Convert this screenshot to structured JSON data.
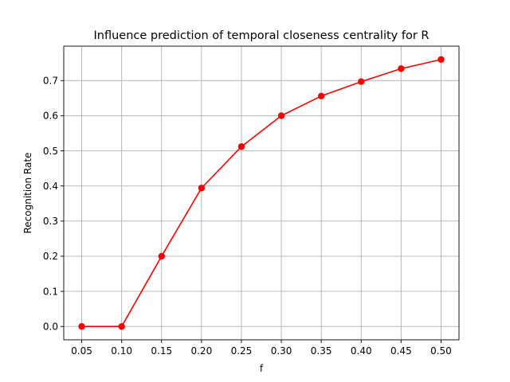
{
  "chart_data": {
    "type": "line",
    "title": "Influence prediction of temporal closeness centrality for R",
    "xlabel": "f",
    "ylabel": "Recognition Rate",
    "x": [
      0.05,
      0.1,
      0.15,
      0.2,
      0.25,
      0.3,
      0.35,
      0.4,
      0.45,
      0.5
    ],
    "series": [
      {
        "values": [
          0.0,
          0.0,
          0.2,
          0.394,
          0.512,
          0.6,
          0.656,
          0.697,
          0.734,
          0.76
        ],
        "color": "#ff0000",
        "marker": "circle"
      }
    ],
    "xticks": [
      "0.05",
      "0.10",
      "0.15",
      "0.20",
      "0.25",
      "0.30",
      "0.35",
      "0.40",
      "0.45",
      "0.50"
    ],
    "yticks": [
      "0.0",
      "0.1",
      "0.2",
      "0.3",
      "0.4",
      "0.5",
      "0.6",
      "0.7"
    ],
    "xlim": [
      0.0275,
      0.5225
    ],
    "ylim": [
      -0.038,
      0.798
    ],
    "grid": true,
    "legend": "none"
  }
}
